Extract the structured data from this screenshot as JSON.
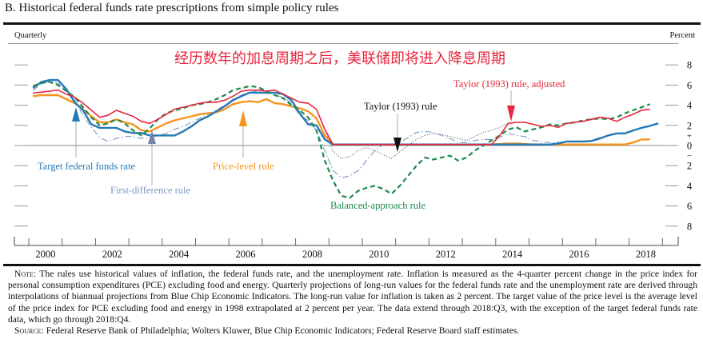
{
  "title": "B.   Historical federal funds rate prescriptions from simple policy rules",
  "frequency_label": "Quarterly",
  "unit_label": "Percent",
  "overlay_text": "经历数年的加息周期之后，美联储即将进入降息周期",
  "note": {
    "note_head": "Note:",
    "note_text": "The rules use historical values of inflation, the federal funds rate, and the unemployment rate. Inflation is measured as the 4-quarter percent change in the price index for personal consumption expenditures (PCE) excluding food and energy. Quarterly projections of long-run values for the federal funds rate and the unemployment rate are derived through interpolations of biannual projections from Blue Chip Economic Indicators. The long-run value for inflation is taken as 2 percent. The target value of the price level is the average level of the price index for PCE excluding food and energy in 1998 extrapolated at 2 percent per year. The data extend through 2018:Q3, with the exception of the target federal funds rate data, which go through 2018:Q4.",
    "source_head": "Source:",
    "source_text": "Federal Reserve Bank of Philadelphia; Wolters Kluwer, Blue Chip Economic Indicators; Federal Reserve Board staff estimates."
  },
  "chart_data": {
    "type": "line",
    "xlabel": "",
    "ylabel": "Percent",
    "x_start": "2000:Q1",
    "x_tick_labels": [
      "2000",
      "2002",
      "2004",
      "2006",
      "2008",
      "2010",
      "2012",
      "2014",
      "2016",
      "2018"
    ],
    "xlim": [
      2000,
      2019
    ],
    "ylim": [
      -8,
      8
    ],
    "y_ticks": [
      8,
      6,
      4,
      2,
      0,
      -2,
      -4,
      -6,
      -8
    ],
    "y_tick_labels": [
      "8",
      "6",
      "4",
      "2",
      "0",
      "2",
      "4",
      "6",
      "8"
    ],
    "y_sign_labels": {
      "plus": "+",
      "minus": "−"
    },
    "grid": false,
    "series": [
      {
        "name": "Taylor (1993) rule",
        "color": "#666666",
        "style": "dotted",
        "values": [
          5.2,
          5.3,
          5.4,
          5.5,
          5.1,
          4.8,
          4.2,
          3.5,
          2.8,
          3.0,
          3.5,
          3.2,
          2.9,
          2.4,
          2.2,
          2.6,
          3.1,
          3.6,
          3.8,
          4.0,
          4.2,
          4.3,
          4.3,
          4.5,
          4.9,
          5.4,
          5.5,
          5.5,
          5.4,
          5.5,
          5.1,
          4.7,
          4.3,
          4.2,
          3.6,
          1.6,
          -0.6,
          -1.3,
          -1.1,
          -0.5,
          -0.2,
          -0.5,
          -0.9,
          -1.3,
          -0.6,
          0.0,
          0.6,
          1.0,
          1.2,
          1.1,
          0.9,
          0.7,
          0.5,
          0.9,
          1.3,
          1.5,
          1.8,
          2.2,
          2.3,
          2.3,
          2.1,
          1.9,
          2.0,
          1.8,
          2.2,
          2.3,
          2.4,
          2.6,
          2.8,
          2.7,
          2.4,
          2.8,
          3.1,
          3.5,
          3.6
        ]
      },
      {
        "name": "First-difference rule",
        "color": "#7b98c2",
        "style": "dashdot",
        "values": [
          5.5,
          6.1,
          6.4,
          6.2,
          5.5,
          4.5,
          3.0,
          1.8,
          0.8,
          0.4,
          0.7,
          0.9,
          0.9,
          0.7,
          0.8,
          1.0,
          1.2,
          1.6,
          1.9,
          2.3,
          2.7,
          3.1,
          3.5,
          4.0,
          4.6,
          5.0,
          5.3,
          5.4,
          5.2,
          5.0,
          4.8,
          4.2,
          3.0,
          2.5,
          1.5,
          -0.5,
          -2.5,
          -3.2,
          -3.0,
          -2.5,
          -1.5,
          -0.5,
          0.1,
          0.1,
          0.3,
          0.8,
          1.3,
          1.4,
          1.3,
          1.0,
          0.7,
          0.3,
          0.3,
          0.5,
          0.6,
          0.6,
          0.8,
          1.2,
          1.0,
          0.9,
          0.5,
          0.4,
          0.3,
          0.3,
          0.4,
          0.4,
          0.45,
          0.5,
          0.8,
          1.0,
          1.2,
          1.3,
          1.5,
          1.75,
          1.95
        ]
      },
      {
        "name": "Price-level rule",
        "color": "#f7941d",
        "style": "solid-thick",
        "values": [
          4.9,
          5.0,
          5.0,
          5.0,
          4.6,
          4.2,
          3.6,
          2.9,
          2.3,
          2.3,
          2.6,
          2.3,
          2.1,
          1.5,
          1.4,
          1.8,
          2.2,
          2.5,
          2.7,
          2.9,
          3.1,
          3.2,
          3.3,
          3.6,
          4.1,
          4.3,
          4.4,
          4.3,
          4.6,
          4.2,
          4.1,
          3.9,
          3.7,
          3.4,
          2.7,
          1.0,
          0.1,
          0.1,
          0.1,
          0.1,
          0.1,
          0.1,
          0.1,
          0.1,
          0.1,
          0.1,
          0.1,
          0.1,
          0.1,
          0.1,
          0.1,
          0.1,
          0.1,
          0.1,
          0.1,
          0.1,
          0.15,
          0.2,
          0.2,
          0.15,
          0.1,
          0.1,
          0.1,
          0.1,
          0.1,
          0.1,
          0.1,
          0.1,
          0.1,
          0.1,
          0.1,
          0.1,
          0.3,
          0.6,
          0.6
        ]
      },
      {
        "name": "Target federal funds rate",
        "color": "#2479b7",
        "style": "solid-thick",
        "values": [
          5.7,
          6.3,
          6.5,
          6.5,
          5.6,
          4.3,
          3.5,
          2.1,
          1.75,
          1.75,
          1.75,
          1.4,
          1.25,
          1.25,
          1.0,
          1.0,
          1.0,
          1.0,
          1.4,
          1.9,
          2.5,
          2.9,
          3.4,
          3.9,
          4.5,
          4.9,
          5.25,
          5.25,
          5.25,
          5.25,
          5.1,
          4.5,
          3.2,
          2.1,
          2.0,
          0.6,
          0.1,
          0.1,
          0.1,
          0.1,
          0.1,
          0.1,
          0.1,
          0.1,
          0.1,
          0.1,
          0.1,
          0.1,
          0.1,
          0.1,
          0.1,
          0.1,
          0.1,
          0.1,
          0.1,
          0.1,
          0.1,
          0.1,
          0.1,
          0.1,
          0.1,
          0.1,
          0.1,
          0.2,
          0.4,
          0.4,
          0.4,
          0.45,
          0.7,
          1.0,
          1.2,
          1.2,
          1.5,
          1.75,
          1.95,
          2.2
        ]
      },
      {
        "name": "Balanced-approach rule",
        "color": "#1e8a4c",
        "style": "dashed",
        "values": [
          5.9,
          6.2,
          6.3,
          6.0,
          5.4,
          4.8,
          3.8,
          2.8,
          2.0,
          2.2,
          2.6,
          2.2,
          1.5,
          1.0,
          1.7,
          2.6,
          3.2,
          3.5,
          3.7,
          4.0,
          4.1,
          4.3,
          4.6,
          5.0,
          5.5,
          5.7,
          5.9,
          5.8,
          5.4,
          5.0,
          4.7,
          4.0,
          3.5,
          2.8,
          1.5,
          -1.5,
          -3.5,
          -5.0,
          -5.2,
          -4.5,
          -4.2,
          -4.0,
          -4.3,
          -4.8,
          -4.0,
          -3.0,
          -2.0,
          -1.2,
          -1.4,
          -1.2,
          -1.0,
          -1.5,
          -1.2,
          -0.5,
          0.0,
          0.5,
          1.0,
          1.6,
          1.8,
          1.4,
          1.6,
          1.8,
          2.1,
          2.0,
          2.2,
          2.3,
          2.5,
          2.6,
          2.7,
          2.6,
          2.8,
          3.2,
          3.5,
          3.8,
          4.1
        ]
      },
      {
        "name": "Taylor (1993) rule, adjusted",
        "color": "#e8263d",
        "style": "solid",
        "values": [
          5.2,
          5.3,
          5.4,
          5.5,
          5.1,
          4.8,
          4.2,
          3.5,
          2.8,
          3.0,
          3.5,
          3.2,
          2.9,
          2.4,
          2.2,
          2.6,
          3.1,
          3.6,
          3.8,
          4.0,
          4.2,
          4.3,
          4.3,
          4.5,
          4.9,
          5.4,
          5.5,
          5.5,
          5.4,
          5.5,
          5.1,
          4.7,
          4.3,
          4.2,
          3.6,
          1.6,
          0.1,
          0.1,
          0.1,
          0.1,
          0.1,
          0.1,
          0.1,
          0.1,
          0.1,
          0.1,
          0.1,
          0.1,
          0.1,
          0.1,
          0.1,
          0.1,
          0.1,
          0.1,
          0.1,
          0.1,
          1.0,
          2.2,
          2.3,
          2.3,
          2.1,
          1.9,
          2.0,
          1.8,
          2.2,
          2.3,
          2.4,
          2.6,
          2.8,
          2.7,
          2.4,
          2.8,
          3.1,
          3.5,
          3.6
        ]
      }
    ],
    "annotations": [
      {
        "text": "Target federal funds rate",
        "series": "Target federal funds rate",
        "color": "#2479b7"
      },
      {
        "text": "First-difference rule",
        "series": "First-difference rule",
        "color": "#7b98c2"
      },
      {
        "text": "Price-level rule",
        "series": "Price-level rule",
        "color": "#f7941d"
      },
      {
        "text": "Taylor (1993) rule",
        "series": "Taylor (1993) rule",
        "color": "#111111"
      },
      {
        "text": "Taylor (1993) rule, adjusted",
        "series": "Taylor (1993) rule, adjusted",
        "color": "#e8263d"
      },
      {
        "text": "Balanced-approach rule",
        "series": "Balanced-approach rule",
        "color": "#1e8a4c"
      }
    ]
  }
}
